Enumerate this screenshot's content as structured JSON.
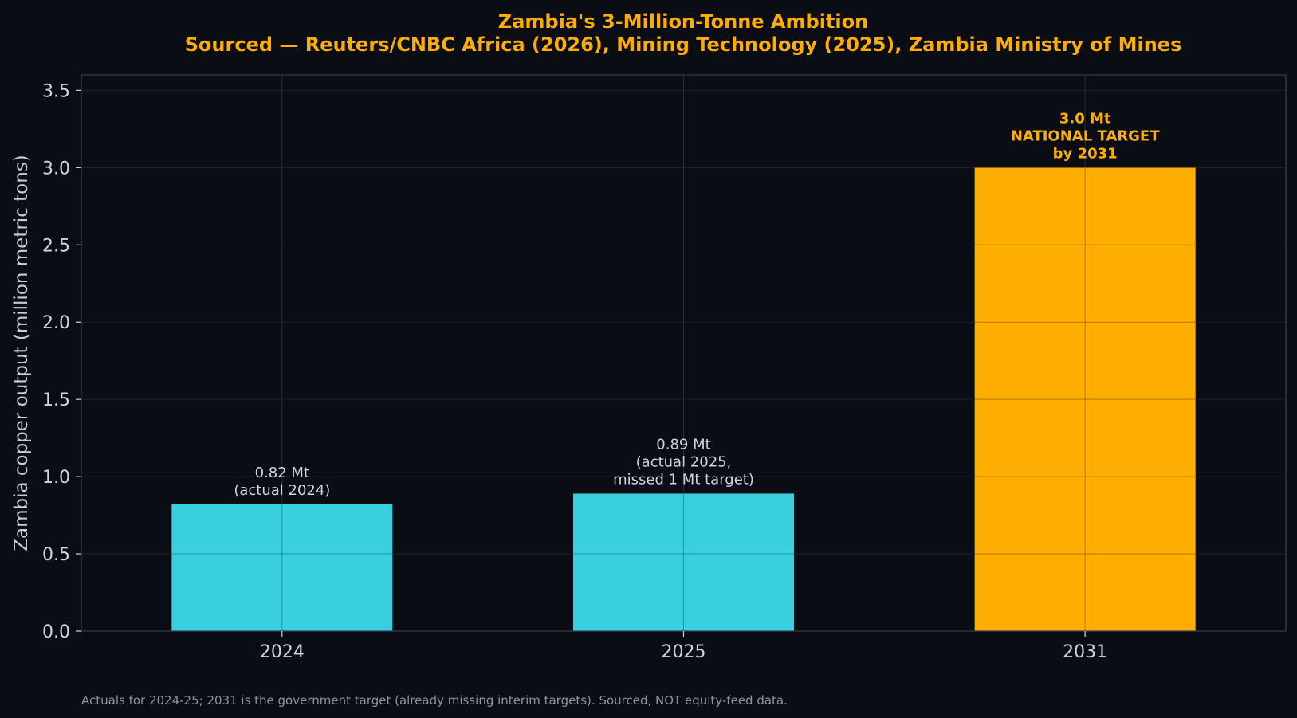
{
  "chart_data": {
    "type": "bar",
    "title_lines": [
      "Zambia's 3-Million-Tonne Ambition",
      "Sourced — Reuters/CNBC Africa (2026), Mining Technology (2025), Zambia Ministry of Mines"
    ],
    "xlabel": "",
    "ylabel": "Zambia copper output (million metric tons)",
    "categories": [
      "2024",
      "2025",
      "2031"
    ],
    "values": [
      0.82,
      0.89,
      3.0
    ],
    "bar_colors": [
      "#38d0de",
      "#38d0de",
      "#ffae00"
    ],
    "data_labels": [
      {
        "lines": [
          "0.82 Mt",
          "(actual 2024)"
        ],
        "bold": false,
        "color": "#d0d4dc"
      },
      {
        "lines": [
          "0.89 Mt",
          "(actual 2025,",
          "missed 1 Mt target)"
        ],
        "bold": false,
        "color": "#d0d4dc"
      },
      {
        "lines": [
          "3.0 Mt",
          "NATIONAL TARGET",
          "by 2031"
        ],
        "bold": true,
        "color": "#ffae00"
      }
    ],
    "ylim": [
      0,
      3.6
    ],
    "yticks": [
      "0.0",
      "0.5",
      "1.0",
      "1.5",
      "2.0",
      "2.5",
      "3.0",
      "3.5"
    ],
    "grid": true,
    "footnote": "Actuals for 2024-25; 2031 is the government target (already missing interim targets). Sourced, NOT equity-feed data."
  },
  "colors": {
    "background": "#0a0d14",
    "title": "#ffae00",
    "grid": "#2a2e36",
    "spine": "#3a3f48",
    "text": "#d0d4dc",
    "footnote": "#8d939e"
  }
}
